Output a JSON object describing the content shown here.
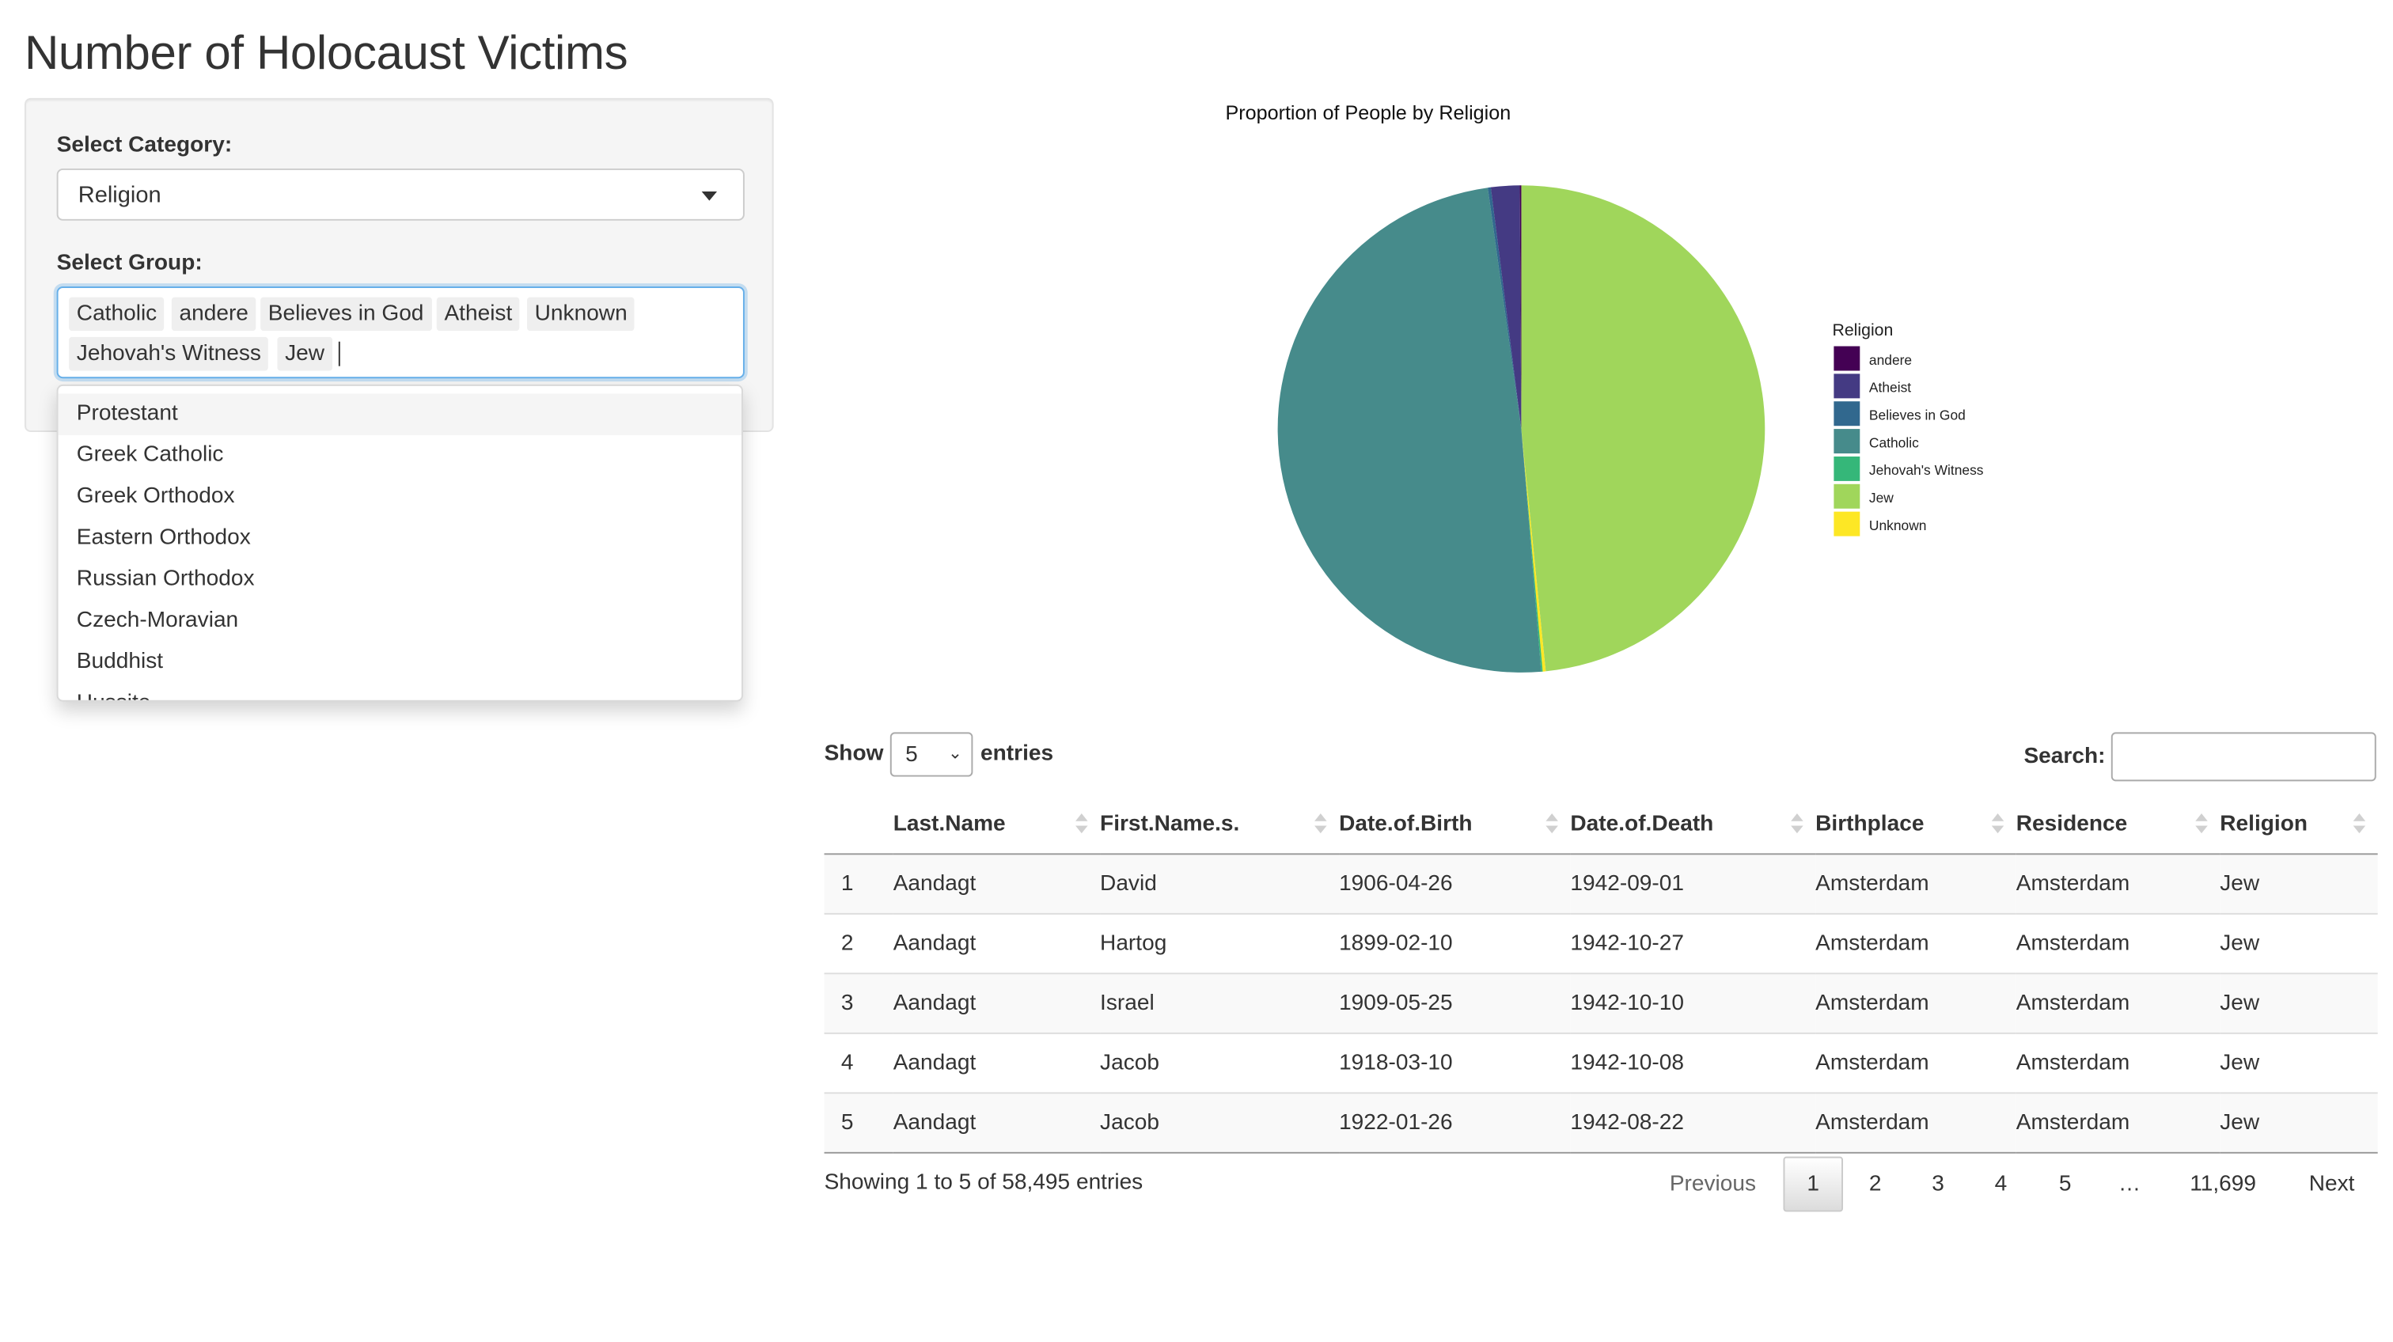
{
  "page": {
    "title": "Number of Holocaust Victims"
  },
  "sidebar": {
    "category_label": "Select Category:",
    "category_value": "Religion",
    "group_label": "Select Group:",
    "selected_groups": [
      "Catholic",
      "andere",
      "Believes in God",
      "Atheist",
      "Unknown",
      "Jehovah's Witness",
      "Jew"
    ],
    "dropdown_options": [
      "Protestant",
      "Greek Catholic",
      "Greek Orthodox",
      "Eastern Orthodox",
      "Russian Orthodox",
      "Czech-Moravian",
      "Buddhist",
      "Hussite"
    ]
  },
  "chart_data": {
    "type": "pie",
    "title": "Proportion of People by Religion",
    "legend_title": "Religion",
    "legend_position": "right",
    "categories": [
      "andere",
      "Atheist",
      "Believes in God",
      "Catholic",
      "Jehovah's Witness",
      "Jew",
      "Unknown"
    ],
    "values": [
      0.1,
      1.9,
      0.2,
      49.1,
      0.1,
      48.4,
      0.2
    ],
    "colors": [
      "#440154",
      "#443a83",
      "#31688e",
      "#468b8b",
      "#35b779",
      "#a0d65b",
      "#fde725"
    ]
  },
  "table_controls": {
    "show_label": "Show",
    "length_value": "5",
    "entries_label": "entries",
    "search_label": "Search:"
  },
  "table": {
    "columns": [
      "",
      "Last.Name",
      "First.Name.s.",
      "Date.of.Birth",
      "Date.of.Death",
      "Birthplace",
      "Residence",
      "Religion"
    ],
    "rows": [
      [
        "1",
        "Aandagt",
        "David",
        "1906-04-26",
        "1942-09-01",
        "Amsterdam",
        "Amsterdam",
        "Jew"
      ],
      [
        "2",
        "Aandagt",
        "Hartog",
        "1899-02-10",
        "1942-10-27",
        "Amsterdam",
        "Amsterdam",
        "Jew"
      ],
      [
        "3",
        "Aandagt",
        "Israel",
        "1909-05-25",
        "1942-10-10",
        "Amsterdam",
        "Amsterdam",
        "Jew"
      ],
      [
        "4",
        "Aandagt",
        "Jacob",
        "1918-03-10",
        "1942-10-08",
        "Amsterdam",
        "Amsterdam",
        "Jew"
      ],
      [
        "5",
        "Aandagt",
        "Jacob",
        "1922-01-26",
        "1942-08-22",
        "Amsterdam",
        "Amsterdam",
        "Jew"
      ]
    ]
  },
  "footer": {
    "info": "Showing 1 to 5 of 58,495 entries",
    "previous": "Previous",
    "pages": [
      "1",
      "2",
      "3",
      "4",
      "5",
      "…",
      "11,699"
    ],
    "next": "Next"
  }
}
